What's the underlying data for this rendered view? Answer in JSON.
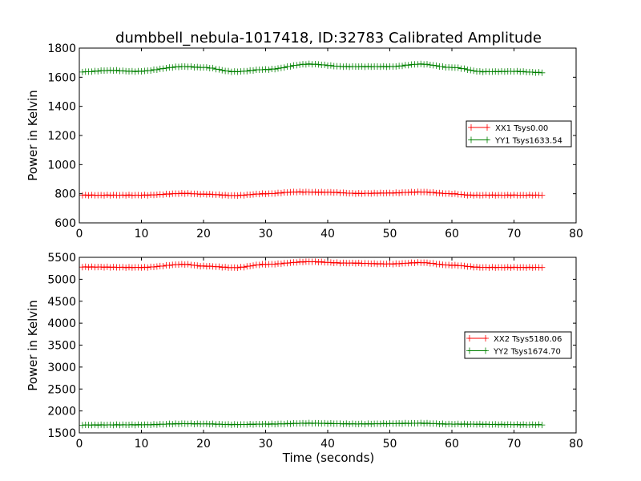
{
  "title": "dumbbell_nebula-1017418, ID:32783 Calibrated Amplitude",
  "chart_data": [
    {
      "type": "line",
      "ylabel": "Power in Kelvin",
      "xlabel": "",
      "xlim": [
        0,
        80
      ],
      "ylim": [
        600,
        1800
      ],
      "xticks": [
        0,
        10,
        20,
        30,
        40,
        50,
        60,
        70,
        80
      ],
      "yticks": [
        600,
        800,
        1000,
        1200,
        1400,
        1600,
        1800
      ],
      "legend_position": "center-right",
      "series": [
        {
          "name": "XX1 Tsys0.00",
          "color": "#ff0000",
          "x_start": 0.5,
          "x_end": 74.5,
          "x_step": 0.5,
          "profile": [
            [
              0.5,
              790
            ],
            [
              10,
              790
            ],
            [
              17,
              802
            ],
            [
              20,
              797
            ],
            [
              25,
              788
            ],
            [
              30,
              800
            ],
            [
              35,
              812
            ],
            [
              40,
              810
            ],
            [
              45,
              802
            ],
            [
              50,
              805
            ],
            [
              55,
              812
            ],
            [
              60,
              800
            ],
            [
              63,
              790
            ],
            [
              74.5,
              790
            ]
          ]
        },
        {
          "name": "YY1 Tsys1633.54",
          "color": "#008000",
          "x_start": 0.5,
          "x_end": 74.5,
          "x_step": 0.5,
          "profile": [
            [
              0.5,
              1637
            ],
            [
              5,
              1647
            ],
            [
              9,
              1640
            ],
            [
              17,
              1673
            ],
            [
              20,
              1667
            ],
            [
              25,
              1638
            ],
            [
              30,
              1653
            ],
            [
              37,
              1690
            ],
            [
              43,
              1673
            ],
            [
              50,
              1673
            ],
            [
              55,
              1690
            ],
            [
              60,
              1667
            ],
            [
              65,
              1638
            ],
            [
              70,
              1640
            ],
            [
              74.5,
              1632
            ]
          ]
        }
      ]
    },
    {
      "type": "line",
      "ylabel": "Power in Kelvin",
      "xlabel": "Time (seconds)",
      "xlim": [
        0,
        80
      ],
      "ylim": [
        1500,
        5500
      ],
      "xticks": [
        0,
        10,
        20,
        30,
        40,
        50,
        60,
        70,
        80
      ],
      "yticks": [
        1500,
        2000,
        2500,
        3000,
        3500,
        4000,
        4500,
        5000,
        5500
      ],
      "legend_position": "center-right",
      "series": [
        {
          "name": "XX2 Tsys5180.06",
          "color": "#ff0000",
          "x_start": 0.5,
          "x_end": 74.5,
          "x_step": 0.5,
          "profile": [
            [
              0.5,
              5280
            ],
            [
              10,
              5270
            ],
            [
              17,
              5340
            ],
            [
              20,
              5300
            ],
            [
              25,
              5265
            ],
            [
              30,
              5340
            ],
            [
              37,
              5400
            ],
            [
              43,
              5370
            ],
            [
              50,
              5350
            ],
            [
              55,
              5380
            ],
            [
              60,
              5320
            ],
            [
              65,
              5270
            ],
            [
              74.5,
              5270
            ]
          ]
        },
        {
          "name": "YY2 Tsys1674.70",
          "color": "#008000",
          "x_start": 0.5,
          "x_end": 74.5,
          "x_step": 0.5,
          "profile": [
            [
              0.5,
              1680
            ],
            [
              10,
              1685
            ],
            [
              17,
              1710
            ],
            [
              20,
              1705
            ],
            [
              25,
              1690
            ],
            [
              30,
              1700
            ],
            [
              37,
              1720
            ],
            [
              45,
              1705
            ],
            [
              55,
              1720
            ],
            [
              60,
              1700
            ],
            [
              74.5,
              1685
            ]
          ]
        }
      ]
    }
  ]
}
